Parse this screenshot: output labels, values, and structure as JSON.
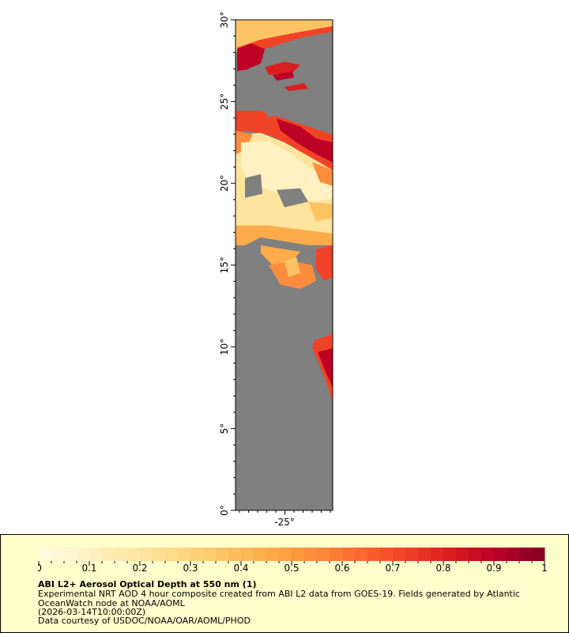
{
  "map": {
    "lat_axis": {
      "min": 0,
      "max": 30,
      "ticks": [
        "0°",
        "5°",
        "10°",
        "15°",
        "20°",
        "25°",
        "30°"
      ]
    },
    "lon_axis": {
      "ticks": [
        "-25°"
      ]
    },
    "land_color": "#808080"
  },
  "legend": {
    "colorbar": {
      "min": 0,
      "max": 1,
      "tick_labels": [
        "0",
        "0.1",
        "0.2",
        "0.3",
        "0.4",
        "0.5",
        "0.6",
        "0.7",
        "0.8",
        "0.9",
        "1"
      ],
      "colors": [
        "#fffbdf",
        "#fff1c2",
        "#ffe6a3",
        "#fed883",
        "#fec464",
        "#feab4b",
        "#fd8d3c",
        "#fc6a30",
        "#f14327",
        "#db1f1f",
        "#bd0026",
        "#8a0025"
      ]
    },
    "title": "ABI L2+ Aerosol Optical Depth at 550 nm (1)",
    "description": "Experimental NRT AOD 4 hour composite created from ABI L2 data from GOES-19. Fields generated by Atlantic OceanWatch node at NOAA/AOML",
    "date": "(2026-03-14T10:00:00Z)",
    "credit": "Data courtesy of USDOC/NOAA/OAR/AOML/PHOD"
  }
}
